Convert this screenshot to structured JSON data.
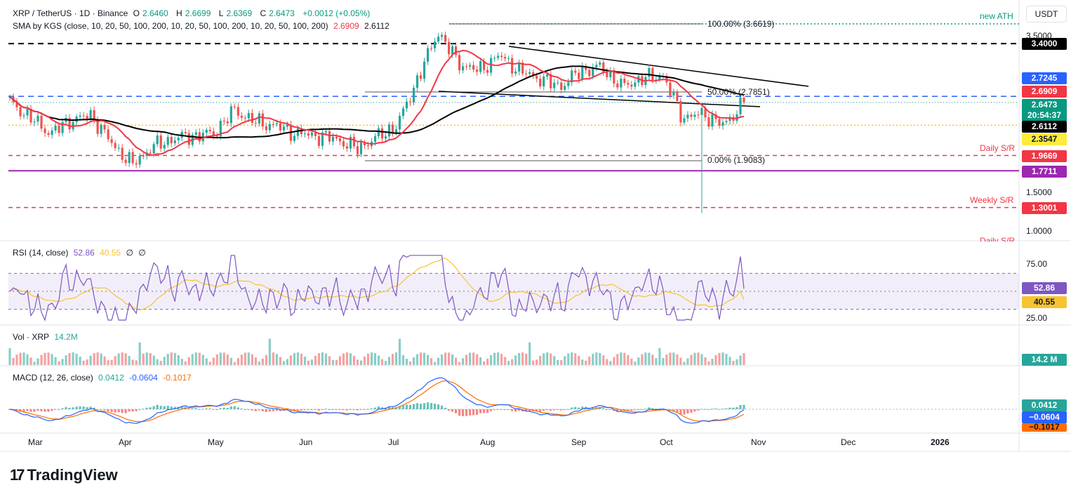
{
  "header": {
    "symbol": "XRP / TetherUS · 1D · Binance",
    "o_label": "O",
    "o": "2.6460",
    "h_label": "H",
    "h": "2.6699",
    "l_label": "L",
    "l": "2.6369",
    "c_label": "C",
    "c": "2.6473",
    "change": "+0.0012 (+0.05%)",
    "sma_title": "SMA by KGS (close, 10, 20, 50, 100, 200, 10, 20, 50, 100, 200, 10, 20, 50, 100, 200)",
    "sma_val1": "2.6909",
    "sma_val2": "2.6112"
  },
  "currency_button": "USDT",
  "logo_text": "TradingView",
  "colors": {
    "up": "#26a69a",
    "down": "#ef5350",
    "sma50": "#f23645",
    "sma200": "#000000",
    "rsi": "#7e57c2",
    "rsi_ma": "#f7c331",
    "macd": "#2962ff",
    "signal": "#ff6d00",
    "support_purple": "#9c27b0",
    "ath_green": "#089981",
    "blue_dash": "#2962ff"
  },
  "annotations": {
    "new_ath": "new ATH",
    "fib100": "100.00% (3.6619)",
    "fib50": "50.00% (2.7851)",
    "fib0": "0.00% (1.9083)",
    "daily_sr": "Daily S/R",
    "weekly_sr": "Weekly S/R",
    "daily_sr_2": "Daily S/R"
  },
  "price_axis": {
    "ticks": [
      "3.5000",
      "1.5000",
      "1.0000"
    ],
    "tags": [
      {
        "value": "3.4000",
        "bg": "#000000",
        "fg": "#ffffff"
      },
      {
        "value": "2.7245",
        "bg": "#2962ff",
        "fg": "#ffffff"
      },
      {
        "value": "2.6909",
        "bg": "#f23645",
        "fg": "#ffffff"
      },
      {
        "value": "2.6473",
        "bg": "#089981",
        "fg": "#ffffff"
      },
      {
        "value": "20:54:37",
        "bg": "#089981",
        "fg": "#ffffff"
      },
      {
        "value": "2.6112",
        "bg": "#000000",
        "fg": "#ffffff"
      },
      {
        "value": "2.3547",
        "bg": "#ffeb3b",
        "fg": "#131722"
      },
      {
        "value": "1.9669",
        "bg": "#f23645",
        "fg": "#ffffff"
      },
      {
        "value": "1.7711",
        "bg": "#9c27b0",
        "fg": "#ffffff"
      },
      {
        "value": "1.3001",
        "bg": "#f23645",
        "fg": "#ffffff"
      }
    ]
  },
  "rsi": {
    "label": "RSI (14, close)",
    "v1": "52.86",
    "v2": "40.55",
    "v3": "∅",
    "v4": "∅",
    "ticks": [
      "75.00",
      "25.00"
    ],
    "tag1": "52.86",
    "tag2": "40.55"
  },
  "volume": {
    "label": "Vol · XRP",
    "value": "14.2M",
    "tag": "14.2 M"
  },
  "macd": {
    "label": "MACD (12, 26, close)",
    "v1": "0.0412",
    "v2": "-0.0604",
    "v3": "-0.1017",
    "tag1": "0.0412",
    "tag2": "−0.0604",
    "tag3": "−0.1017"
  },
  "time_axis": [
    "Mar",
    "Apr",
    "May",
    "Jun",
    "Jul",
    "Aug",
    "Sep",
    "Oct",
    "Nov",
    "Dec",
    "2026"
  ],
  "chart_data": {
    "type": "line",
    "x": [
      "Feb 24",
      "Mar 3",
      "Mar 10",
      "Mar 17",
      "Mar 24",
      "Mar 31",
      "Apr 7",
      "Apr 14",
      "Apr 21",
      "Apr 28",
      "May 5",
      "May 12",
      "May 19",
      "May 26",
      "Jun 2",
      "Jun 9",
      "Jun 16",
      "Jun 23",
      "Jun 30",
      "Jul 7",
      "Jul 14",
      "Jul 21",
      "Jul 28",
      "Aug 4",
      "Aug 11",
      "Aug 18",
      "Aug 25",
      "Sep 1",
      "Sep 8",
      "Sep 15",
      "Sep 22",
      "Sep 29",
      "Oct 6",
      "Oct 10",
      "Oct 13",
      "Oct 20",
      "Oct 25"
    ],
    "series": [
      {
        "name": "XRP / TetherUS",
        "values": [
          2.65,
          2.45,
          2.25,
          2.42,
          2.48,
          2.12,
          1.85,
          2.08,
          2.18,
          2.22,
          2.25,
          2.55,
          2.4,
          2.35,
          2.25,
          2.22,
          2.18,
          2.05,
          2.2,
          2.35,
          2.95,
          3.55,
          3.15,
          3.05,
          3.25,
          3.05,
          2.95,
          2.85,
          3.05,
          3.1,
          2.85,
          2.95,
          3.0,
          2.45,
          2.5,
          2.35,
          2.6473
        ]
      }
    ],
    "ylim": [
      0.9,
      3.75
    ],
    "horizontal_levels": [
      3.4,
      2.7245,
      2.6473,
      2.3547,
      1.9669,
      1.7711,
      1.3001
    ]
  }
}
